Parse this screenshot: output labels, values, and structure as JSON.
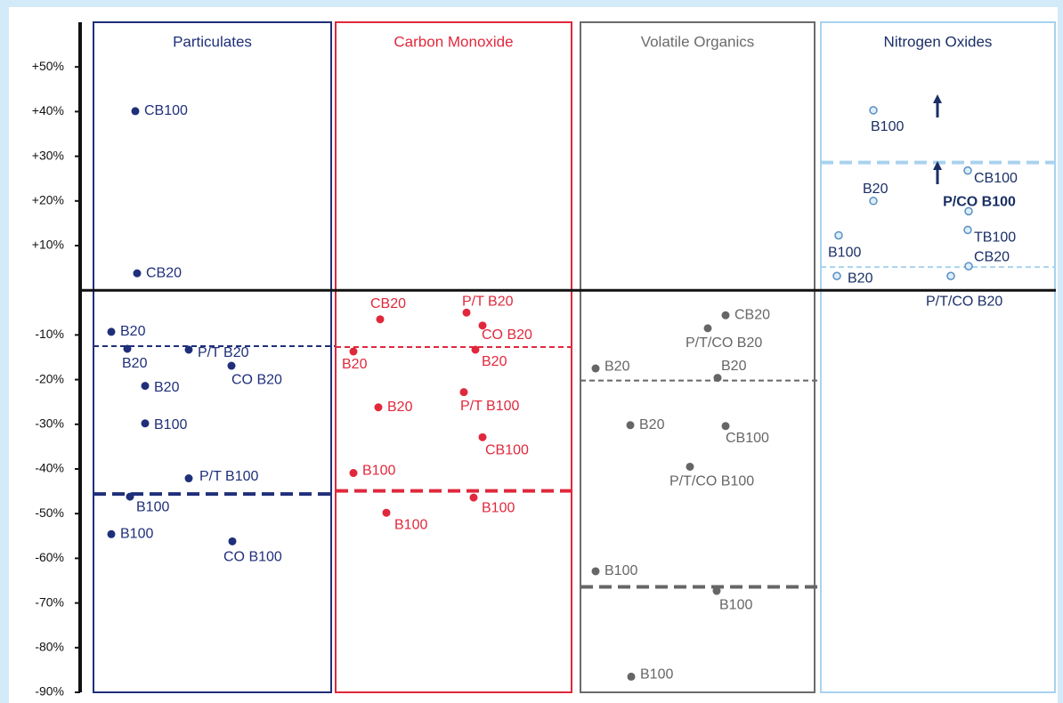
{
  "chart_data": {
    "type": "dot",
    "ylim": [
      -90,
      60
    ],
    "yticks": [
      {
        "value": 50,
        "label": "+50%"
      },
      {
        "value": 40,
        "label": "+40%"
      },
      {
        "value": 30,
        "label": "+30%"
      },
      {
        "value": 20,
        "label": "+20%"
      },
      {
        "value": 10,
        "label": "+10%"
      },
      {
        "value": -10,
        "label": "-10%"
      },
      {
        "value": -20,
        "label": "-20%"
      },
      {
        "value": -30,
        "label": "-30%"
      },
      {
        "value": -40,
        "label": "-40%"
      },
      {
        "value": -50,
        "label": "-50%"
      },
      {
        "value": -60,
        "label": "-60%"
      },
      {
        "value": -70,
        "label": "-70%"
      },
      {
        "value": -80,
        "label": "-80%"
      },
      {
        "value": -90,
        "label": "-90%"
      }
    ],
    "series": [
      {
        "name": "Particulates",
        "color": "#1f2f7a",
        "title_color": "#1f2f7a",
        "hollow": false,
        "labels": [
          "CB100",
          "CB20",
          "B20",
          "B20",
          "P/T B20",
          "CO B20",
          "B20",
          "B100",
          "P/T B100",
          "B100",
          "B100",
          "CO B100"
        ],
        "values": [
          40.1,
          3.8,
          -9.3,
          -13.1,
          -13.3,
          -16.9,
          -21.4,
          -29.8,
          -42.1,
          -46.2,
          -54.6,
          -56.2
        ],
        "lines": [
          -12.5,
          -45.6
        ]
      },
      {
        "name": "Carbon Monoxide",
        "color": "#e0283c",
        "title_color": "#e0283c",
        "hollow": false,
        "labels": [
          "CB20",
          "P/T B20",
          "CO B20",
          "B20",
          "B20",
          "P/T B100",
          "B20",
          "CB100",
          "B100",
          "B100",
          "B100"
        ],
        "values": [
          -6.5,
          -5.0,
          -7.9,
          -13.7,
          -13.3,
          -22.8,
          -26.2,
          -32.9,
          -40.9,
          -46.4,
          -49.8
        ],
        "lines": [
          -12.7,
          -44.9
        ]
      },
      {
        "name": "Volatile Organics",
        "color": "#666666",
        "title_color": "#6b6b6b",
        "hollow": false,
        "labels": [
          "CB20",
          "P/T/CO B20",
          "B20",
          "B20",
          "B20",
          "CB100",
          "P/T/CO B100",
          "B100",
          "B100",
          "B100"
        ],
        "values": [
          -5.6,
          -8.5,
          -17.5,
          -19.6,
          -30.2,
          -30.4,
          -39.5,
          -62.9,
          -67.3,
          -86.5
        ],
        "lines": [
          -20.2,
          -66.4
        ]
      },
      {
        "name": "Nitrogen Oxides",
        "color": "#a8d2ef",
        "title_color": "#1a2f66",
        "hollow": true,
        "labels": [
          "B100",
          "CB100",
          "B20",
          "P/CO B100",
          "TB100",
          "B100",
          "CB20",
          "B20",
          "P/T/CO B20"
        ],
        "values": [
          40.3,
          26.8,
          20.0,
          17.7,
          13.5,
          12.3,
          5.4,
          3.2,
          3.2
        ],
        "lines": [
          5.2,
          28.6
        ]
      }
    ]
  }
}
